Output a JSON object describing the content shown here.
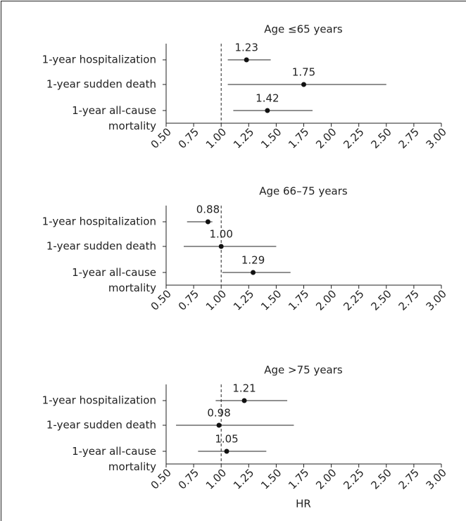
{
  "chart_data": [
    {
      "type": "forest",
      "title": "Age ≤65 years",
      "categories": [
        "1-year hospitalization",
        "1-year sudden death",
        "1-year all-cause\nmortality"
      ],
      "values": [
        1.23,
        1.75,
        1.42
      ],
      "value_labels": [
        "1.23",
        "1.75",
        "1.42"
      ],
      "ci_lower": [
        1.06,
        1.06,
        1.11
      ],
      "ci_upper": [
        1.45,
        2.5,
        1.83
      ],
      "ref_line": 1,
      "xlim": [
        0.5,
        3
      ],
      "xticks": [
        {
          "value": 0.5,
          "label": "0.50"
        },
        {
          "value": 0.75,
          "label": "0.75"
        },
        {
          "value": 1,
          "label": "1.00"
        },
        {
          "value": 1.25,
          "label": "1.25"
        },
        {
          "value": 1.5,
          "label": "1.50"
        },
        {
          "value": 1.75,
          "label": "1.75"
        },
        {
          "value": 2,
          "label": "2.00"
        },
        {
          "value": 2.25,
          "label": "2.25"
        },
        {
          "value": 2.5,
          "label": "2.50"
        },
        {
          "value": 2.75,
          "label": "2.75"
        },
        {
          "value": 3,
          "label": "3.00"
        }
      ]
    },
    {
      "type": "forest",
      "title": "Age 66–75 years",
      "categories": [
        "1-year hospitalization",
        "1-year sudden death",
        "1-year all-cause\nmortality"
      ],
      "values": [
        0.88,
        1.0,
        1.29
      ],
      "value_labels": [
        "0.88",
        "1.00",
        "1.29"
      ],
      "ci_lower": [
        0.69,
        0.66,
        1.01
      ],
      "ci_upper": [
        0.92,
        1.5,
        1.63
      ],
      "ref_line": 1,
      "xlim": [
        0.5,
        3
      ],
      "xticks": [
        {
          "value": 0.5,
          "label": "0.50"
        },
        {
          "value": 0.75,
          "label": "0.75"
        },
        {
          "value": 1,
          "label": "1.00"
        },
        {
          "value": 1.25,
          "label": "1.25"
        },
        {
          "value": 1.5,
          "label": "1.50"
        },
        {
          "value": 1.75,
          "label": "1.75"
        },
        {
          "value": 2,
          "label": "2.00"
        },
        {
          "value": 2.25,
          "label": "2.25"
        },
        {
          "value": 2.5,
          "label": "2.50"
        },
        {
          "value": 2.75,
          "label": "2.75"
        },
        {
          "value": 3,
          "label": "3.00"
        }
      ]
    },
    {
      "type": "forest",
      "title": "Age >75 years",
      "categories": [
        "1-year hospitalization",
        "1-year sudden death",
        "1-year all-cause\nmortality"
      ],
      "values": [
        1.21,
        0.98,
        1.05
      ],
      "value_labels": [
        "1.21",
        "0.98",
        "1.05"
      ],
      "ci_lower": [
        0.95,
        0.59,
        0.79
      ],
      "ci_upper": [
        1.6,
        1.66,
        1.41
      ],
      "ref_line": 1,
      "xlim": [
        0.5,
        3
      ],
      "xlabel": "HR",
      "xticks": [
        {
          "value": 0.5,
          "label": "0.50"
        },
        {
          "value": 0.75,
          "label": "0.75"
        },
        {
          "value": 1,
          "label": "1.00"
        },
        {
          "value": 1.25,
          "label": "1.25"
        },
        {
          "value": 1.5,
          "label": "1.50"
        },
        {
          "value": 1.75,
          "label": "1.75"
        },
        {
          "value": 2,
          "label": "2.00"
        },
        {
          "value": 2.25,
          "label": "2.25"
        },
        {
          "value": 2.5,
          "label": "2.50"
        },
        {
          "value": 2.75,
          "label": "2.75"
        },
        {
          "value": 3,
          "label": "3.00"
        }
      ]
    }
  ]
}
